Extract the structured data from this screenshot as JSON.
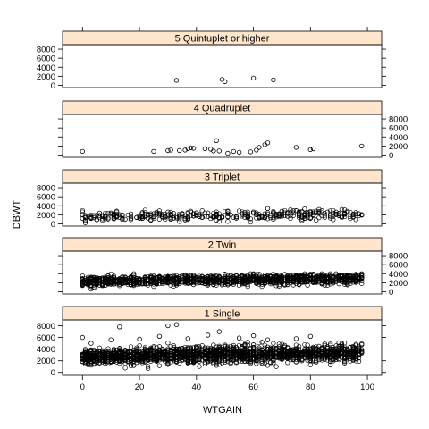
{
  "chart_data": {
    "type": "scatter",
    "xlabel": "WTGAIN",
    "ylabel": "DBWT",
    "xlim": [
      -7,
      105
    ],
    "ylim": [
      -500,
      9000
    ],
    "x_ticks": [
      0,
      20,
      40,
      60,
      80,
      100
    ],
    "x_tick_labels": [
      "0",
      "20",
      "40",
      "60",
      "80",
      "100"
    ],
    "y_ticks": [
      0,
      2000,
      4000,
      6000,
      8000
    ],
    "y_tick_labels": [
      "0",
      "2000",
      "4000",
      "6000",
      "8000"
    ],
    "grid": false,
    "strip_color": "#ffe5cc",
    "marker_color": "#000000",
    "panels": [
      {
        "strip": "5 Quintuplet or higher",
        "y_axis_side": "left",
        "points": [
          [
            33,
            1100
          ],
          [
            49,
            1300
          ],
          [
            50,
            800
          ],
          [
            60,
            1600
          ],
          [
            67,
            1200
          ]
        ]
      },
      {
        "strip": "4 Quadruplet",
        "y_axis_side": "right",
        "points": [
          [
            0,
            800
          ],
          [
            25,
            800
          ],
          [
            30,
            1000
          ],
          [
            31,
            1100
          ],
          [
            34,
            1000
          ],
          [
            36,
            1100
          ],
          [
            37,
            1400
          ],
          [
            38,
            1600
          ],
          [
            39,
            1500
          ],
          [
            43,
            1400
          ],
          [
            45,
            1300
          ],
          [
            46,
            900
          ],
          [
            47,
            3200
          ],
          [
            48,
            900
          ],
          [
            51,
            400
          ],
          [
            53,
            800
          ],
          [
            55,
            600
          ],
          [
            59,
            700
          ],
          [
            61,
            1100
          ],
          [
            62,
            1700
          ],
          [
            64,
            2300
          ],
          [
            65,
            2700
          ],
          [
            75,
            1700
          ],
          [
            80,
            1200
          ],
          [
            81,
            1400
          ],
          [
            98,
            2000
          ]
        ]
      },
      {
        "strip": "3 Triplet",
        "y_axis_side": "left",
        "density": "dense",
        "points": [
          [
            0,
            1200
          ],
          [
            0,
            2000
          ],
          [
            1,
            600
          ],
          [
            3,
            1500
          ],
          [
            5,
            900
          ],
          [
            7,
            1800
          ],
          [
            9,
            1300
          ],
          [
            10,
            2400
          ],
          [
            12,
            1600
          ],
          [
            14,
            2000
          ],
          [
            15,
            1000
          ],
          [
            17,
            2200
          ],
          [
            19,
            1400
          ],
          [
            21,
            2500
          ],
          [
            22,
            1800
          ],
          [
            24,
            800
          ],
          [
            26,
            2100
          ],
          [
            28,
            1500
          ],
          [
            30,
            2600
          ],
          [
            31,
            1900
          ],
          [
            33,
            1300
          ],
          [
            35,
            2300
          ],
          [
            36,
            1700
          ],
          [
            38,
            2800
          ],
          [
            40,
            2000
          ],
          [
            42,
            1400
          ],
          [
            44,
            2400
          ],
          [
            45,
            1800
          ],
          [
            47,
            2200
          ],
          [
            49,
            1600
          ],
          [
            51,
            2700
          ],
          [
            52,
            2000
          ],
          [
            54,
            1500
          ],
          [
            56,
            2300
          ],
          [
            58,
            1900
          ],
          [
            60,
            2600
          ],
          [
            61,
            2100
          ],
          [
            63,
            1700
          ],
          [
            65,
            3400
          ],
          [
            67,
            2500
          ],
          [
            68,
            2000
          ],
          [
            70,
            2800
          ],
          [
            72,
            2300
          ],
          [
            74,
            2900
          ],
          [
            76,
            2500
          ],
          [
            78,
            3300
          ],
          [
            80,
            2700
          ],
          [
            82,
            2400
          ],
          [
            84,
            2900
          ],
          [
            86,
            2600
          ],
          [
            90,
            2300
          ],
          [
            92,
            2100
          ],
          [
            98,
            2000
          ]
        ]
      },
      {
        "strip": "2 Twin",
        "y_axis_side": "right",
        "density": "very dense",
        "points": [
          [
            0,
            1500
          ],
          [
            0,
            3500
          ],
          [
            2,
            2500
          ],
          [
            5,
            2000
          ],
          [
            8,
            3000
          ],
          [
            10,
            2600
          ],
          [
            14,
            1800
          ],
          [
            17,
            3200
          ],
          [
            20,
            2700
          ],
          [
            24,
            2200
          ],
          [
            27,
            3300
          ],
          [
            30,
            2800
          ],
          [
            33,
            2000
          ],
          [
            36,
            3500
          ],
          [
            40,
            2900
          ],
          [
            43,
            2400
          ],
          [
            46,
            3400
          ],
          [
            50,
            2900
          ],
          [
            53,
            2200
          ],
          [
            56,
            3500
          ],
          [
            60,
            3000
          ],
          [
            63,
            2500
          ],
          [
            66,
            3500
          ],
          [
            70,
            3000
          ],
          [
            73,
            2400
          ],
          [
            76,
            3600
          ],
          [
            80,
            3000
          ],
          [
            83,
            2500
          ],
          [
            86,
            3600
          ],
          [
            90,
            3100
          ],
          [
            93,
            2600
          ],
          [
            96,
            3400
          ],
          [
            98,
            3000
          ]
        ]
      },
      {
        "strip": "1 Single",
        "y_axis_side": "left",
        "density": "very dense",
        "points": [
          [
            0,
            6000
          ],
          [
            0,
            3000
          ],
          [
            3,
            5000
          ],
          [
            6,
            2500
          ],
          [
            10,
            5600
          ],
          [
            13,
            7800
          ],
          [
            16,
            3300
          ],
          [
            20,
            5700
          ],
          [
            23,
            2800
          ],
          [
            27,
            6200
          ],
          [
            30,
            8000
          ],
          [
            33,
            8200
          ],
          [
            37,
            5800
          ],
          [
            40,
            3400
          ],
          [
            44,
            6400
          ],
          [
            48,
            7000
          ],
          [
            51,
            4200
          ],
          [
            55,
            5900
          ],
          [
            60,
            6300
          ],
          [
            65,
            5600
          ],
          [
            70,
            3800
          ],
          [
            75,
            5800
          ],
          [
            80,
            6200
          ],
          [
            85,
            4900
          ],
          [
            90,
            5100
          ],
          [
            95,
            4300
          ],
          [
            98,
            4900
          ]
        ]
      }
    ]
  }
}
